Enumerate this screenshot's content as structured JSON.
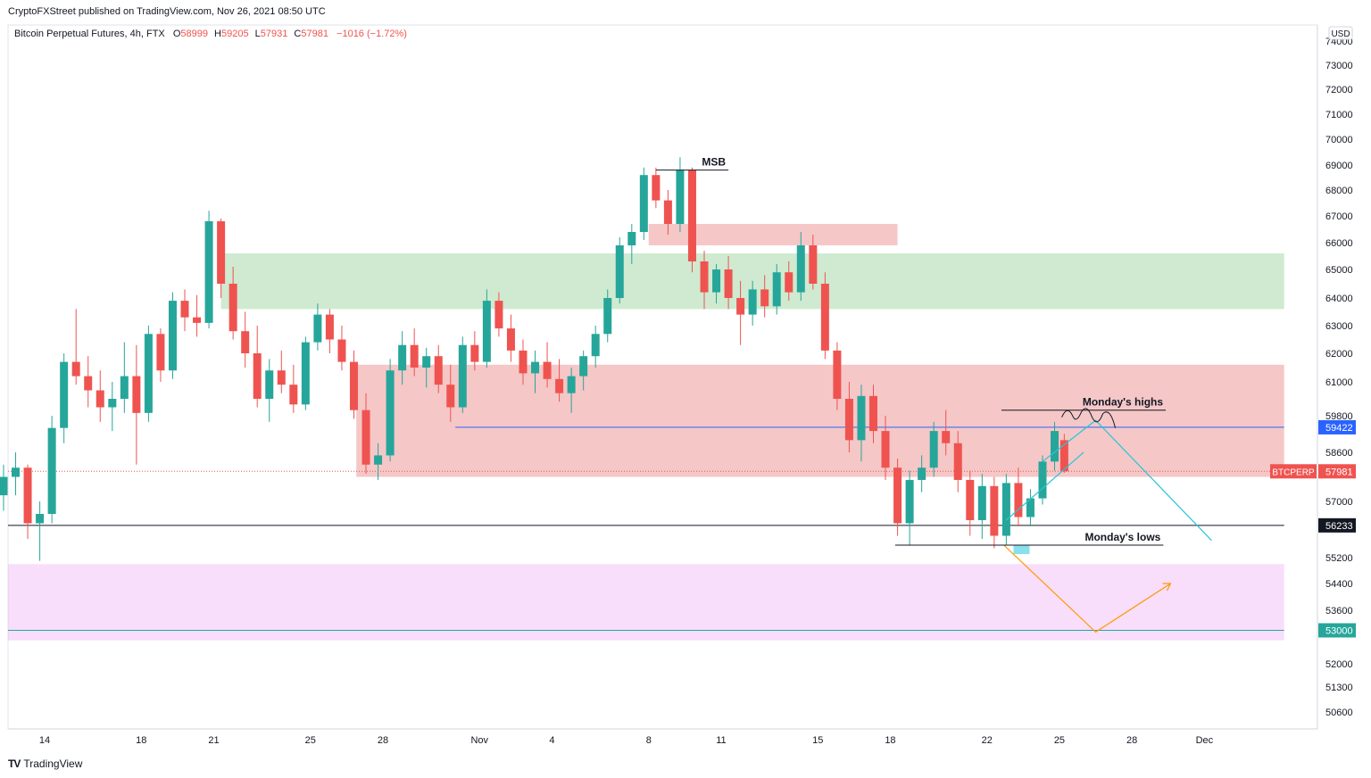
{
  "header": {
    "publisher": "CryptoFXStreet published on TradingView.com, Nov 26, 2021 08:50 UTC"
  },
  "footer": {
    "brand": "TradingView",
    "logo": "TV"
  },
  "legend": {
    "symbol": "Bitcoin Perpetual Futures, 4h, FTX",
    "open_label": "O",
    "open": "58999",
    "high_label": "H",
    "high": "59205",
    "low_label": "L",
    "low": "57931",
    "close_label": "C",
    "close": "57981",
    "change": "−1016 (−1.72%)"
  },
  "currency": "USD",
  "chart_data": {
    "type": "candlestick",
    "title": "Bitcoin Perpetual Futures, 4h, FTX",
    "x_ticks": [
      {
        "label": "14",
        "d": 13.7
      },
      {
        "label": "18",
        "d": 17.7
      },
      {
        "label": "21",
        "d": 20.7
      },
      {
        "label": "25",
        "d": 24.7
      },
      {
        "label": "28",
        "d": 27.7
      },
      {
        "label": "Nov",
        "d": 31.7
      },
      {
        "label": "4",
        "d": 34.7
      },
      {
        "label": "8",
        "d": 38.7
      },
      {
        "label": "11",
        "d": 41.7
      },
      {
        "label": "15",
        "d": 45.7
      },
      {
        "label": "18",
        "d": 48.7
      },
      {
        "label": "22",
        "d": 52.7
      },
      {
        "label": "25",
        "d": 55.7
      },
      {
        "label": "28",
        "d": 58.7
      },
      {
        "label": "Dec",
        "d": 61.7
      }
    ],
    "y_ticks": [
      "74000",
      "73000",
      "72000",
      "71000",
      "70000",
      "69000",
      "68000",
      "67000",
      "66000",
      "65000",
      "64000",
      "63000",
      "62000",
      "61000",
      "59800",
      "58600",
      "57000",
      "55200",
      "54400",
      "53600",
      "52000",
      "51300",
      "50600"
    ],
    "price_labels": [
      {
        "text": "59422",
        "price": 59422,
        "color": "#2962ff"
      },
      {
        "text": "57981",
        "price": 57981,
        "color": "#ef5350"
      },
      {
        "text": "56233",
        "price": 56233,
        "color": "#131722"
      },
      {
        "text": "53000",
        "price": 53000,
        "color": "#26a69a"
      }
    ],
    "symbol_label": "BTCPERP",
    "zones": [
      {
        "name": "supply-zone-top",
        "p1": 65900,
        "p2": 66700,
        "d1": 38.7,
        "d2": 49.0,
        "color": "rgba(229,115,115,0.40)"
      },
      {
        "name": "demand-zone",
        "p1": 63600,
        "p2": 65600,
        "d1": 21.0,
        "d2": 65.0,
        "color": "rgba(129,199,132,0.38)"
      },
      {
        "name": "supply-zone",
        "p1": 57800,
        "p2": 61600,
        "d1": 26.6,
        "d2": 65.0,
        "color": "rgba(229,115,115,0.40)"
      },
      {
        "name": "support-zone",
        "p1": 52700,
        "p2": 55000,
        "d1": 11.0,
        "d2": 65.0,
        "color": "rgba(234,160,244,0.35)"
      }
    ],
    "levels": [
      {
        "name": "level-56233",
        "price": 56233,
        "color": "#131722",
        "d1": 11.0,
        "d2": 65.0
      },
      {
        "name": "level-53000",
        "price": 53000,
        "color": "#26a69a",
        "d1": 11.0,
        "d2": 65.0
      },
      {
        "name": "level-59422",
        "price": 59422,
        "color": "#2962ff",
        "d1": 30.7,
        "d2": 65.0
      },
      {
        "name": "last-price",
        "price": 57981,
        "color": "#ef5350",
        "d1": 11.0,
        "d2": 65.0,
        "dotted": true
      }
    ],
    "annotations": [
      {
        "text": "MSB",
        "price": 68800,
        "d1": 39.0,
        "d2": 42.0
      },
      {
        "text": "Monday's highs",
        "price": 59999,
        "d1": 53.3,
        "d2": 60.1
      },
      {
        "text": "Monday's lows",
        "price": 55600,
        "d1": 48.9,
        "d2": 60.0
      }
    ],
    "projections": [
      {
        "name": "projection-up-down",
        "color": "#26c6da",
        "points": [
          [
            55.0,
            58300
          ],
          [
            57.2,
            59650
          ],
          [
            62.0,
            55750
          ]
        ]
      },
      {
        "name": "projection-rising",
        "color": "#26c6da",
        "points": [
          [
            53.5,
            56400
          ],
          [
            56.7,
            58600
          ]
        ]
      },
      {
        "name": "projection-orange",
        "color": "#ff9800",
        "points": [
          [
            53.4,
            55600
          ],
          [
            57.2,
            52950
          ],
          [
            60.3,
            54400
          ]
        ]
      }
    ],
    "candles": [
      [
        11.0,
        55500,
        57000,
        55000,
        56200
      ],
      [
        11.5,
        56200,
        57600,
        55400,
        57200
      ],
      [
        12.0,
        57200,
        58200,
        56700,
        57800
      ],
      [
        12.5,
        57800,
        58600,
        57200,
        58100
      ],
      [
        13.0,
        58100,
        58200,
        55800,
        56300
      ],
      [
        13.5,
        56300,
        57000,
        55100,
        56600
      ],
      [
        14.0,
        56600,
        59800,
        56300,
        59400
      ],
      [
        14.5,
        59400,
        62000,
        58900,
        61700
      ],
      [
        15.0,
        61700,
        63600,
        60900,
        61200
      ],
      [
        15.5,
        61200,
        61900,
        60100,
        60700
      ],
      [
        16.0,
        60700,
        61400,
        59600,
        60100
      ],
      [
        16.5,
        60100,
        61000,
        59300,
        60400
      ],
      [
        17.0,
        60400,
        62400,
        59900,
        61200
      ],
      [
        17.5,
        61200,
        62300,
        58200,
        59900
      ],
      [
        18.0,
        59900,
        63000,
        59600,
        62700
      ],
      [
        18.5,
        62700,
        62900,
        61000,
        61400
      ],
      [
        19.0,
        61400,
        64200,
        61100,
        63900
      ],
      [
        19.5,
        63900,
        64300,
        62800,
        63300
      ],
      [
        20.0,
        63300,
        64100,
        62600,
        63100
      ],
      [
        20.5,
        63100,
        67200,
        62900,
        66800
      ],
      [
        21.0,
        66800,
        66900,
        64000,
        64500
      ],
      [
        21.5,
        64500,
        65100,
        62500,
        62800
      ],
      [
        22.0,
        62800,
        63500,
        61500,
        62000
      ],
      [
        22.5,
        62000,
        63000,
        60100,
        60400
      ],
      [
        23.0,
        60400,
        61800,
        59600,
        61400
      ],
      [
        23.5,
        61400,
        62100,
        60600,
        60900
      ],
      [
        24.0,
        60900,
        61600,
        59900,
        60200
      ],
      [
        24.5,
        60200,
        62600,
        60000,
        62400
      ],
      [
        25.0,
        62400,
        63800,
        62100,
        63400
      ],
      [
        25.5,
        63400,
        63600,
        62000,
        62500
      ],
      [
        26.0,
        62500,
        63000,
        61400,
        61700
      ],
      [
        26.5,
        61700,
        62100,
        59700,
        60000
      ],
      [
        27.0,
        60000,
        60600,
        57900,
        58200
      ],
      [
        27.5,
        58200,
        58900,
        57700,
        58500
      ],
      [
        28.0,
        58500,
        61800,
        58300,
        61400
      ],
      [
        28.5,
        61400,
        62800,
        60900,
        62300
      ],
      [
        29.0,
        62300,
        62900,
        61200,
        61500
      ],
      [
        29.5,
        61500,
        62200,
        60800,
        61900
      ],
      [
        30.0,
        61900,
        62300,
        60600,
        60900
      ],
      [
        30.5,
        60900,
        61600,
        59600,
        60100
      ],
      [
        31.0,
        60100,
        62600,
        59900,
        62300
      ],
      [
        31.5,
        62300,
        62800,
        61400,
        61700
      ],
      [
        32.0,
        61700,
        64300,
        61500,
        63900
      ],
      [
        32.5,
        63900,
        64200,
        62600,
        62900
      ],
      [
        33.0,
        62900,
        63400,
        61700,
        62100
      ],
      [
        33.5,
        62100,
        62500,
        60900,
        61300
      ],
      [
        34.0,
        61300,
        62100,
        60600,
        61700
      ],
      [
        34.5,
        61700,
        62400,
        60800,
        61100
      ],
      [
        35.0,
        61100,
        61800,
        60300,
        60600
      ],
      [
        35.5,
        60600,
        61500,
        59900,
        61200
      ],
      [
        36.0,
        61200,
        62100,
        60700,
        61900
      ],
      [
        36.5,
        61900,
        63000,
        61500,
        62700
      ],
      [
        37.0,
        62700,
        64300,
        62400,
        64000
      ],
      [
        37.5,
        64000,
        66200,
        63800,
        65900
      ],
      [
        38.0,
        65900,
        66700,
        65200,
        66400
      ],
      [
        38.5,
        66400,
        68900,
        66100,
        68600
      ],
      [
        39.0,
        68600,
        68900,
        67300,
        67600
      ],
      [
        39.5,
        67600,
        68000,
        66300,
        66700
      ],
      [
        40.0,
        66700,
        69300,
        66400,
        68800
      ],
      [
        40.5,
        68800,
        68900,
        64900,
        65300
      ],
      [
        41.0,
        65300,
        65700,
        63600,
        64200
      ],
      [
        41.5,
        64200,
        65200,
        63800,
        65000
      ],
      [
        42.0,
        65000,
        65500,
        63600,
        64000
      ],
      [
        42.5,
        64000,
        64600,
        62300,
        63400
      ],
      [
        43.0,
        63400,
        64600,
        63000,
        64300
      ],
      [
        43.5,
        64300,
        64800,
        63300,
        63700
      ],
      [
        44.0,
        63700,
        65200,
        63400,
        64900
      ],
      [
        44.5,
        64900,
        65300,
        63900,
        64200
      ],
      [
        45.0,
        64200,
        66400,
        63900,
        65900
      ],
      [
        45.5,
        65900,
        66300,
        64300,
        64500
      ],
      [
        46.0,
        64500,
        64900,
        61800,
        62100
      ],
      [
        46.5,
        62100,
        62400,
        60000,
        60400
      ],
      [
        47.0,
        60400,
        61000,
        58600,
        59000
      ],
      [
        47.5,
        59000,
        60900,
        58300,
        60500
      ],
      [
        48.0,
        60500,
        60900,
        58900,
        59300
      ],
      [
        48.5,
        59300,
        59800,
        57700,
        58100
      ],
      [
        49.0,
        58100,
        58400,
        55900,
        56300
      ],
      [
        49.5,
        56300,
        58000,
        55600,
        57700
      ],
      [
        50.0,
        57700,
        58500,
        57300,
        58100
      ],
      [
        50.5,
        58100,
        59600,
        57800,
        59300
      ],
      [
        51.0,
        59300,
        60000,
        58500,
        58900
      ],
      [
        51.5,
        58900,
        59300,
        57300,
        57700
      ],
      [
        52.0,
        57700,
        58000,
        55900,
        56400
      ],
      [
        52.5,
        56400,
        57900,
        55800,
        57500
      ],
      [
        53.0,
        57500,
        57800,
        55500,
        55900
      ],
      [
        53.5,
        55900,
        57900,
        55600,
        57600
      ],
      [
        54.0,
        57600,
        58100,
        56200,
        56500
      ],
      [
        54.5,
        56500,
        57400,
        56200,
        57100
      ],
      [
        55.0,
        57100,
        58500,
        56900,
        58300
      ],
      [
        55.5,
        58300,
        59600,
        58000,
        59300
      ],
      [
        55.9,
        58999,
        59205,
        57931,
        57981
      ]
    ]
  }
}
